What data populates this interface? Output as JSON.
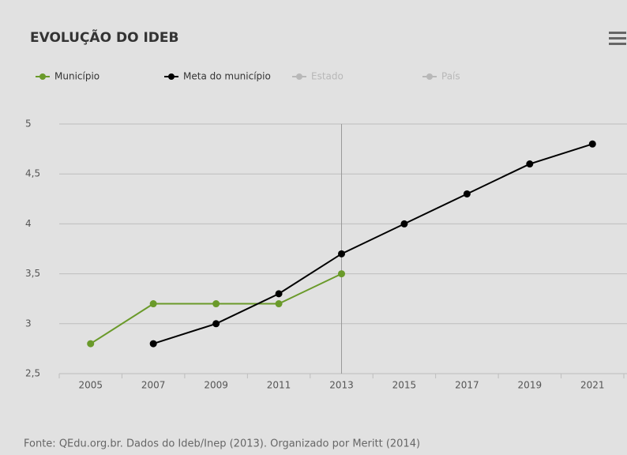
{
  "chart_data": {
    "type": "line",
    "title": "EVOLUÇÃO DO IDEB",
    "categories": [
      "2005",
      "2007",
      "2009",
      "2011",
      "2013",
      "2015",
      "2017",
      "2019",
      "2021"
    ],
    "series": [
      {
        "name": "Município",
        "color": "#6a9a2a",
        "values": [
          2.8,
          3.2,
          3.2,
          3.2,
          3.5,
          null,
          null,
          null,
          null
        ]
      },
      {
        "name": "Meta do município",
        "color": "#000000",
        "values": [
          null,
          2.8,
          3.0,
          3.3,
          3.7,
          4.0,
          4.3,
          4.6,
          4.8
        ]
      },
      {
        "name": "Estado",
        "color": "#b8b8b8",
        "hidden": true,
        "values": [
          null,
          null,
          null,
          null,
          null,
          null,
          null,
          null,
          null
        ]
      },
      {
        "name": "País",
        "color": "#b8b8b8",
        "hidden": true,
        "values": [
          null,
          null,
          null,
          null,
          null,
          null,
          null,
          null,
          null
        ]
      }
    ],
    "ylim": [
      2.5,
      5
    ],
    "yticks": [
      {
        "value": 2.5,
        "label": "2,5"
      },
      3,
      {
        "value": 3.5,
        "label": "3,5"
      },
      4,
      {
        "value": 4.5,
        "label": "4,5"
      },
      5
    ],
    "grid": true,
    "source": "Fonte: QEdu.org.br. Dados do Ideb/Inep (2013). Organizado por Meritt (2014)"
  }
}
